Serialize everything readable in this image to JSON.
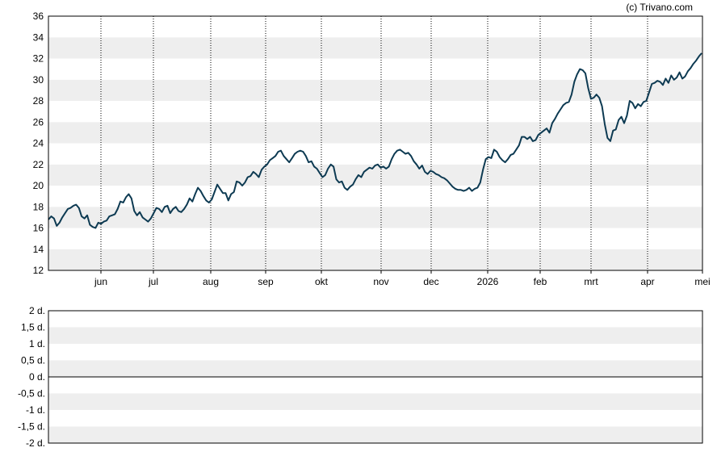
{
  "copyright": "(c) Trivano.com",
  "chart_data": [
    {
      "type": "line",
      "title": "",
      "xlabel": "",
      "ylabel": "",
      "ylim": [
        12,
        36
      ],
      "y_ticks": [
        "12",
        "14",
        "16",
        "18",
        "20",
        "22",
        "24",
        "26",
        "28",
        "30",
        "32",
        "34",
        "36"
      ],
      "x_ticks": [
        "jun",
        "jul",
        "aug",
        "sep",
        "okt",
        "nov",
        "dec",
        "2026",
        "feb",
        "mrt",
        "apr",
        "mei"
      ],
      "grid": "banded horizontal, dotted vertical at month starts",
      "line_color": "#0d3a52",
      "series": [
        {
          "values": [
            16.8,
            17.1,
            16.9,
            16.2,
            16.5,
            17.0,
            17.4,
            17.8,
            17.9,
            18.1,
            18.2,
            17.9,
            17.1,
            16.9,
            17.2,
            16.3,
            16.1,
            16.0,
            16.5,
            16.4,
            16.6,
            16.7,
            17.1,
            17.2,
            17.3,
            17.8,
            18.5,
            18.4,
            18.9,
            19.2,
            18.8,
            17.6,
            17.2,
            17.5,
            17.0,
            16.8,
            16.6,
            16.9,
            17.4,
            17.9,
            17.8,
            17.5,
            18.0,
            18.1,
            17.4,
            17.8,
            18.0,
            17.6,
            17.5,
            17.8,
            18.2,
            18.8,
            18.5,
            19.2,
            19.8,
            19.5,
            19.0,
            18.6,
            18.4,
            18.7,
            19.4,
            20.1,
            19.7,
            19.3,
            19.3,
            18.6,
            19.2,
            19.4,
            20.4,
            20.3,
            20.0,
            20.3,
            20.8,
            20.9,
            21.3,
            21.1,
            20.8,
            21.5,
            21.8,
            22.0,
            22.4,
            22.6,
            22.8,
            23.2,
            23.3,
            22.8,
            22.5,
            22.2,
            22.6,
            23.0,
            23.2,
            23.3,
            23.2,
            22.8,
            22.2,
            22.3,
            21.8,
            21.6,
            21.2,
            20.8,
            21.0,
            21.6,
            22.0,
            21.8,
            20.6,
            20.3,
            20.4,
            19.8,
            19.6,
            19.9,
            20.1,
            20.6,
            21.0,
            20.8,
            21.3,
            21.5,
            21.7,
            21.6,
            21.9,
            22.0,
            21.7,
            21.8,
            21.6,
            21.8,
            22.5,
            23.0,
            23.3,
            23.4,
            23.2,
            23.0,
            23.1,
            22.8,
            22.3,
            22.0,
            21.6,
            21.9,
            21.3,
            21.1,
            21.4,
            21.3,
            21.1,
            21.0,
            20.8,
            20.7,
            20.5,
            20.2,
            19.9,
            19.7,
            19.6,
            19.6,
            19.5,
            19.6,
            19.8,
            19.5,
            19.7,
            19.8,
            20.3,
            21.5,
            22.5,
            22.7,
            22.6,
            23.4,
            23.2,
            22.7,
            22.4,
            22.2,
            22.5,
            22.9,
            23.0,
            23.4,
            23.8,
            24.6,
            24.6,
            24.4,
            24.6,
            24.2,
            24.3,
            24.8,
            25.0,
            25.2,
            25.4,
            25.0,
            25.9,
            26.3,
            26.8,
            27.2,
            27.6,
            27.8,
            27.9,
            28.6,
            29.8,
            30.5,
            31.0,
            30.9,
            30.6,
            29.2,
            28.2,
            28.3,
            28.6,
            28.3,
            27.5,
            25.8,
            24.5,
            24.2,
            25.2,
            25.3,
            26.2,
            26.5,
            25.9,
            26.6,
            28.0,
            27.8,
            27.3,
            27.7,
            27.5,
            27.9,
            28.0,
            28.8,
            29.6,
            29.7,
            29.9,
            29.8,
            29.5,
            30.1,
            29.7,
            30.4,
            30.0,
            30.2,
            30.7,
            30.1,
            30.3,
            30.8,
            31.1,
            31.5,
            31.8,
            32.2,
            32.5
          ]
        }
      ]
    },
    {
      "type": "line",
      "title": "",
      "ylim": [
        -2,
        2
      ],
      "y_ticks": [
        "2 d.",
        "1,5 d.",
        "1 d.",
        "0,5 d.",
        "0 d.",
        "-0,5 d.",
        "-1 d.",
        "-1,5 d.",
        "-2 d."
      ],
      "baseline": "0 d.",
      "series": []
    }
  ]
}
